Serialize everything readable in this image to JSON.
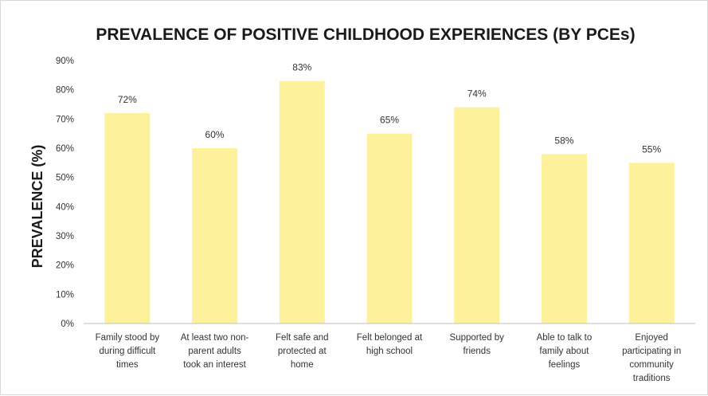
{
  "chart_data": {
    "type": "bar",
    "title": "PREVALENCE OF POSITIVE CHILDHOOD EXPERIENCES (BY PCEs)",
    "xlabel": "",
    "ylabel": "PREVALENCE (%)",
    "ylim": [
      0,
      90
    ],
    "yticks": [
      "0%",
      "10%",
      "20%",
      "30%",
      "40%",
      "50%",
      "60%",
      "70%",
      "80%",
      "90%"
    ],
    "grid": false,
    "bar_color": "#fdf19b",
    "categories": [
      [
        "Family stood by",
        "during difficult",
        "times"
      ],
      [
        "At least two non-",
        "parent adults",
        "took an interest"
      ],
      [
        "Felt safe and",
        "protected at",
        "home"
      ],
      [
        "Felt belonged at",
        "high school"
      ],
      [
        "Supported by",
        "friends"
      ],
      [
        "Able to talk to",
        "family about",
        "feelings"
      ],
      [
        "Enjoyed",
        "participating in",
        "community",
        "traditions"
      ]
    ],
    "values": [
      72,
      60,
      83,
      65,
      74,
      58,
      55
    ],
    "data_labels": [
      "72%",
      "60%",
      "83%",
      "65%",
      "74%",
      "58%",
      "55%"
    ]
  }
}
